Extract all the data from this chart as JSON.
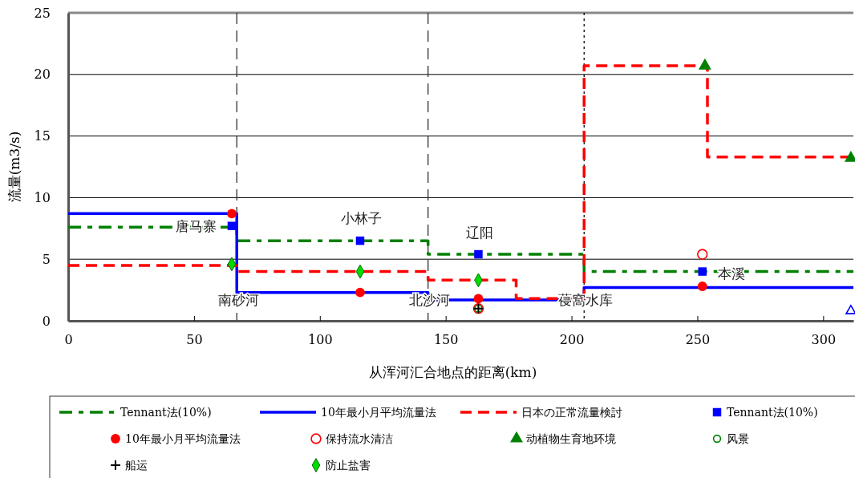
{
  "chart_data": {
    "type": "step",
    "xlabel": "从浑河汇合地点的距离(km)",
    "ylabel": "流量(m3/s)",
    "xlim": [
      0,
      312
    ],
    "xticks": [
      0,
      50,
      100,
      150,
      200,
      250,
      300
    ],
    "ylim": [
      0,
      25
    ],
    "yticks": [
      0,
      5,
      10,
      15,
      20,
      25
    ],
    "grid": "y",
    "legend": "bottom",
    "series": [
      {
        "name": "Tennant法(10%)",
        "color": "#008000",
        "line_style": "dashdot",
        "marker": "none",
        "x": [
          0,
          67,
          143,
          205,
          312
        ],
        "values": [
          7.6,
          6.5,
          5.4,
          4.0,
          4.0
        ]
      },
      {
        "name": "10年最小月平均流量法",
        "color": "#0000ff",
        "line_style": "solid",
        "marker": "none",
        "x": [
          0,
          67,
          143,
          205,
          312
        ],
        "values": [
          8.7,
          2.3,
          1.7,
          2.7,
          2.7
        ]
      },
      {
        "name": "日本の正常流量検討",
        "color": "#ff0000",
        "line_style": "dashed",
        "marker": "none",
        "x": [
          0,
          67,
          143,
          178,
          205,
          254,
          312
        ],
        "values": [
          4.5,
          4.0,
          3.3,
          1.8,
          20.7,
          13.3,
          13.3
        ]
      },
      {
        "name": "Tennant法(10%)",
        "type": "scatter",
        "color": "#0000ff",
        "marker": "square",
        "x": [
          65,
          116,
          163,
          252
        ],
        "values": [
          7.7,
          6.5,
          5.4,
          4.0
        ]
      },
      {
        "name": "10年最小月平均流量法",
        "type": "scatter",
        "color": "#ff0000",
        "marker": "circle",
        "x": [
          65,
          116,
          163,
          252
        ],
        "values": [
          8.7,
          2.3,
          1.8,
          2.8
        ]
      },
      {
        "name": "保持流水清洁",
        "type": "scatter",
        "color": "#ff0000",
        "marker": "circle-open",
        "x": [
          163,
          252
        ],
        "values": [
          1.0,
          5.4
        ]
      },
      {
        "name": "动植物生育地环境",
        "type": "scatter",
        "color": "#008000",
        "marker": "triangle",
        "x": [
          253,
          311
        ],
        "values": [
          20.7,
          13.2
        ]
      },
      {
        "name": "风景",
        "type": "scatter",
        "color": "#008000",
        "marker": "circle-open",
        "x": [
          163
        ],
        "values": [
          1.0
        ]
      },
      {
        "name": "船运",
        "type": "scatter",
        "color": "#000000",
        "marker": "cross",
        "x": [
          163
        ],
        "values": [
          1.0
        ]
      },
      {
        "name": "防止盐害",
        "type": "scatter",
        "color": "#00dd00",
        "marker": "diamond",
        "x": [
          65,
          116,
          163
        ],
        "values": [
          4.6,
          4.0,
          3.3
        ]
      },
      {
        "type": "scatter",
        "color": "#0000ff",
        "marker": "triangle-open",
        "x": [
          311
        ],
        "values": [
          0.8
        ]
      }
    ],
    "ref_lines": [
      {
        "axis": "x",
        "value": 67,
        "line_style": "dashed",
        "color": "#333333"
      },
      {
        "axis": "x",
        "value": 143,
        "line_style": "dashed",
        "color": "#333333"
      },
      {
        "axis": "x",
        "value": 205,
        "line_style": "dotted",
        "color": "#000000"
      }
    ],
    "annotations": [
      "唐马寨",
      "南砂河",
      "小林子",
      "北沙河",
      "辽阳",
      "葠窩水库",
      "本溪"
    ]
  }
}
